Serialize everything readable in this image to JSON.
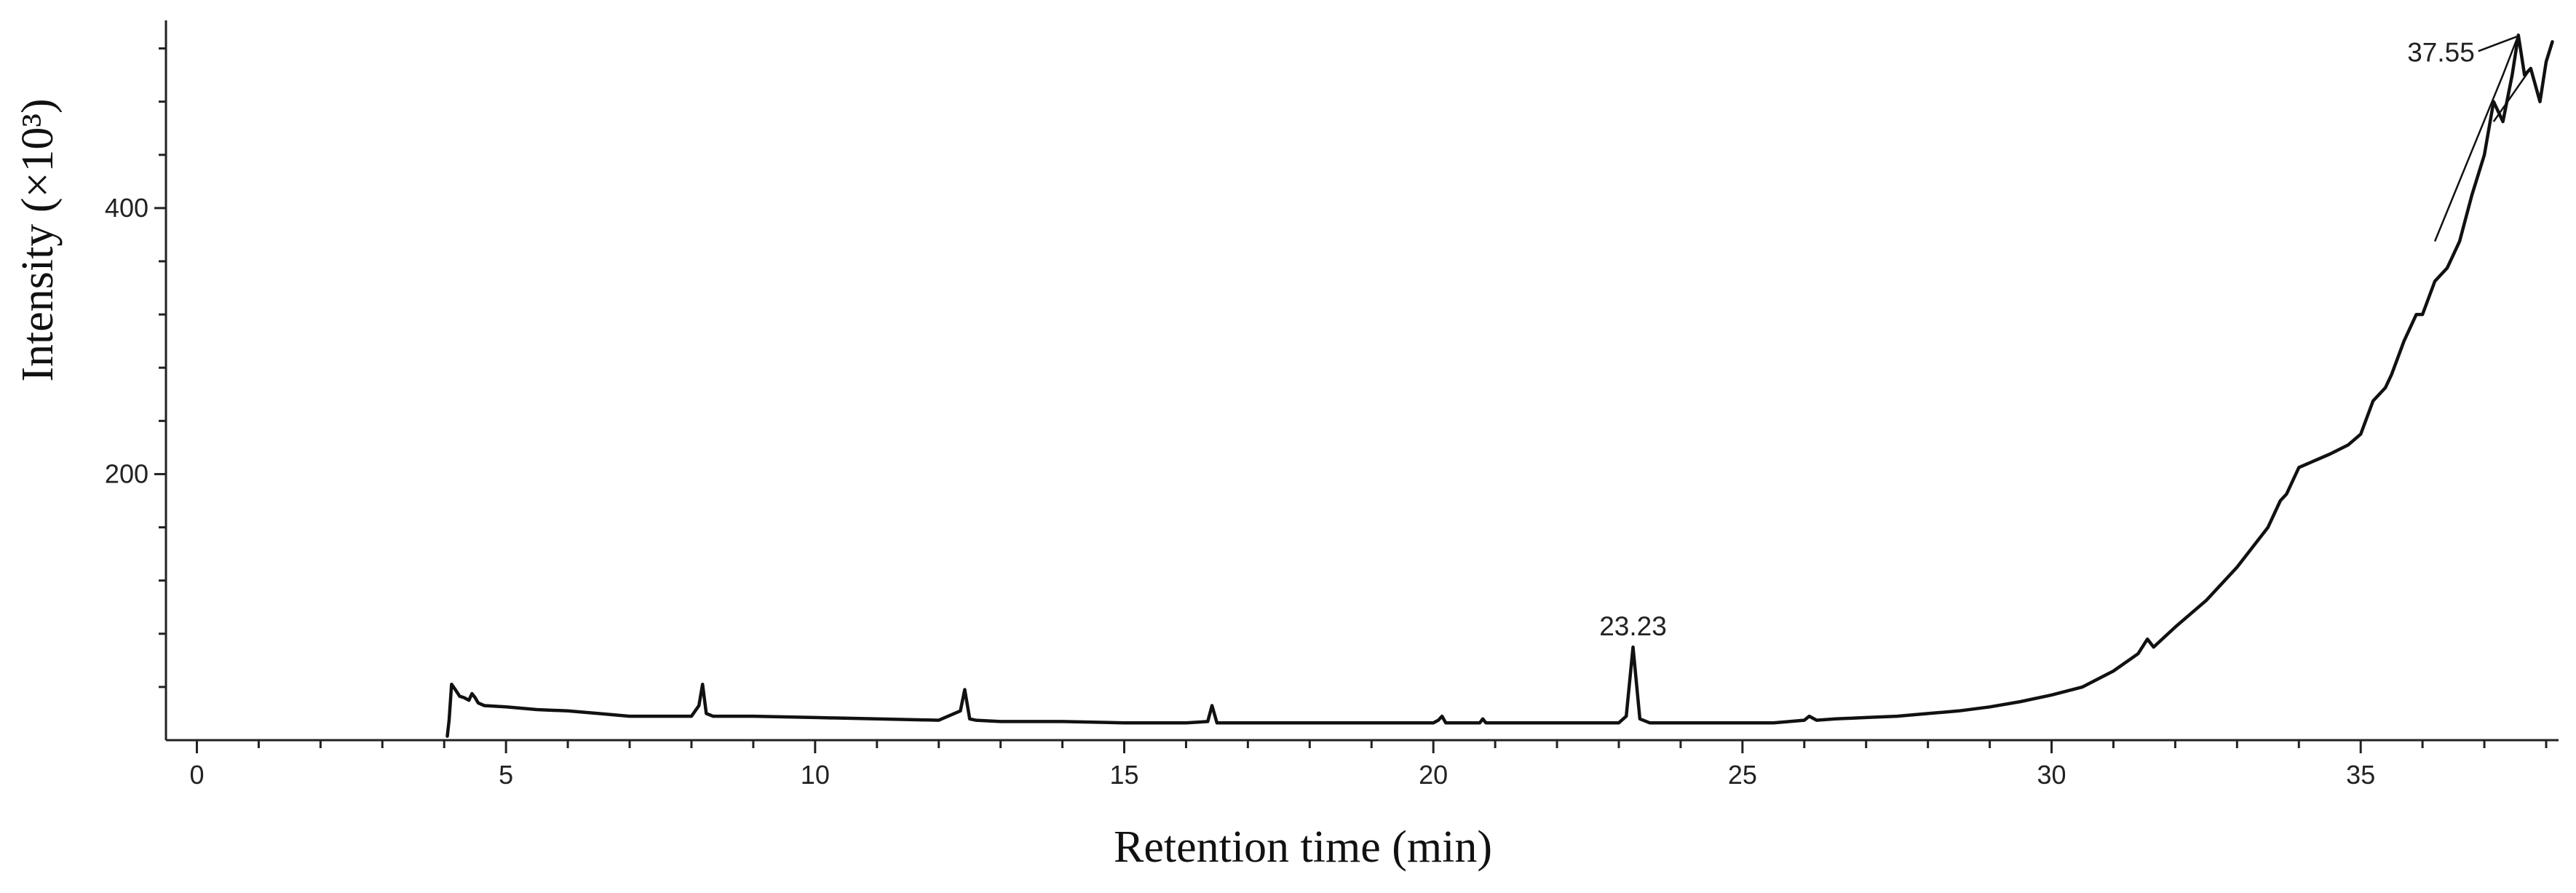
{
  "chart_data": {
    "type": "line",
    "title": "",
    "xlabel": "Retention time (min)",
    "ylabel": "Intensity (×10³)",
    "xlim": [
      -0.3,
      38.2
    ],
    "ylim": [
      0,
      540
    ],
    "x_ticks": [
      0,
      5,
      10,
      15,
      20,
      25,
      30,
      35
    ],
    "y_ticks": [
      200,
      400
    ],
    "grid": false,
    "legend": "none",
    "annotations": [
      {
        "label": "23.23",
        "x": 23.23,
        "y": 70
      },
      {
        "label": "37.55",
        "x": 37.55,
        "y": 530
      }
    ],
    "series": [
      {
        "x": [
          4.05,
          4.08,
          4.12,
          4.18,
          4.25,
          4.32,
          4.4,
          4.45,
          4.5,
          4.55,
          4.65,
          5.0,
          5.5,
          6.0,
          6.5,
          7.0,
          7.5,
          8.0,
          8.12,
          8.18,
          8.24,
          8.35,
          9.0,
          10.0,
          11.0,
          12.0,
          12.35,
          12.42,
          12.5,
          12.6,
          13.0,
          14.0,
          15.0,
          16.0,
          16.35,
          16.42,
          16.5,
          17.0,
          18.0,
          19.0,
          20.0,
          20.08,
          20.14,
          20.2,
          20.75,
          20.8,
          20.85,
          21.0,
          22.0,
          23.0,
          23.12,
          23.23,
          23.34,
          23.5,
          24.0,
          25.0,
          25.5,
          26.0,
          26.08,
          26.2,
          26.5,
          27.0,
          27.5,
          28.0,
          28.5,
          29.0,
          29.5,
          30.0,
          30.5,
          31.0,
          31.4,
          31.55,
          31.65,
          32.0,
          32.5,
          33.0,
          33.5,
          33.7,
          33.8,
          34.0,
          34.5,
          34.8,
          35.0,
          35.2,
          35.4,
          35.5,
          35.7,
          35.9,
          36.0,
          36.2,
          36.4,
          36.6,
          36.8,
          37.0,
          37.15,
          37.3,
          37.45,
          37.55,
          37.65,
          37.75,
          37.9,
          38.0,
          38.1
        ],
        "y": [
          3,
          15,
          42,
          38,
          33,
          32,
          30,
          35,
          32,
          28,
          26,
          25,
          23,
          22,
          20,
          18,
          18,
          18,
          26,
          42,
          20,
          18,
          18,
          17,
          16,
          15,
          22,
          38,
          16,
          15,
          14,
          14,
          13,
          13,
          14,
          26,
          13,
          13,
          13,
          13,
          13,
          15,
          18,
          13,
          13,
          16,
          13,
          13,
          13,
          13,
          18,
          70,
          16,
          13,
          13,
          13,
          13,
          15,
          18,
          15,
          16,
          17,
          18,
          20,
          22,
          25,
          29,
          34,
          40,
          52,
          65,
          76,
          70,
          85,
          105,
          130,
          160,
          180,
          185,
          205,
          215,
          222,
          230,
          255,
          265,
          275,
          300,
          320,
          320,
          345,
          355,
          375,
          410,
          440,
          480,
          465,
          500,
          530,
          500,
          505,
          480,
          510,
          525
        ]
      }
    ]
  }
}
